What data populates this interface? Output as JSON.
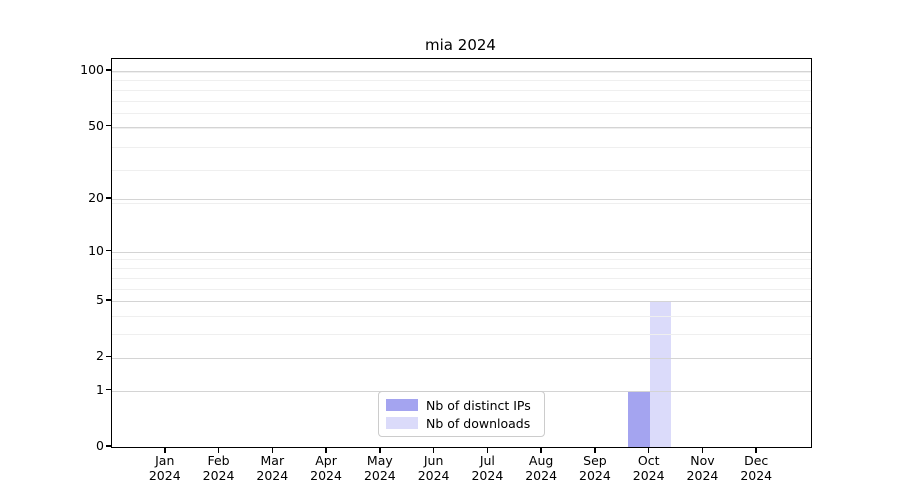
{
  "chart_data": {
    "type": "bar",
    "title": "mia 2024",
    "categories": [
      "Jan",
      "Feb",
      "Mar",
      "Apr",
      "May",
      "Jun",
      "Jul",
      "Aug",
      "Sep",
      "Oct",
      "Nov",
      "Dec"
    ],
    "category_year": "2024",
    "series": [
      {
        "name": "Nb of distinct IPs",
        "color": "#a4a4f0",
        "values": [
          0,
          0,
          0,
          0,
          0,
          0,
          0,
          0,
          0,
          1,
          0,
          0
        ]
      },
      {
        "name": "Nb of downloads",
        "color": "#dbdbfa",
        "values": [
          0,
          0,
          0,
          0,
          0,
          0,
          0,
          0,
          0,
          5,
          0,
          0
        ]
      }
    ],
    "yticks": [
      0,
      1,
      2,
      5,
      10,
      20,
      50,
      100
    ],
    "yscale": "log1p",
    "xlabel": "",
    "ylabel": "",
    "grid": "horizontal",
    "legend_position": "lower center",
    "colors": {
      "major_grid": "#d4d4d4",
      "minor_grid": "#efefef",
      "spine": "#000000",
      "text": "#000000",
      "legend_border": "#cccccc"
    }
  }
}
